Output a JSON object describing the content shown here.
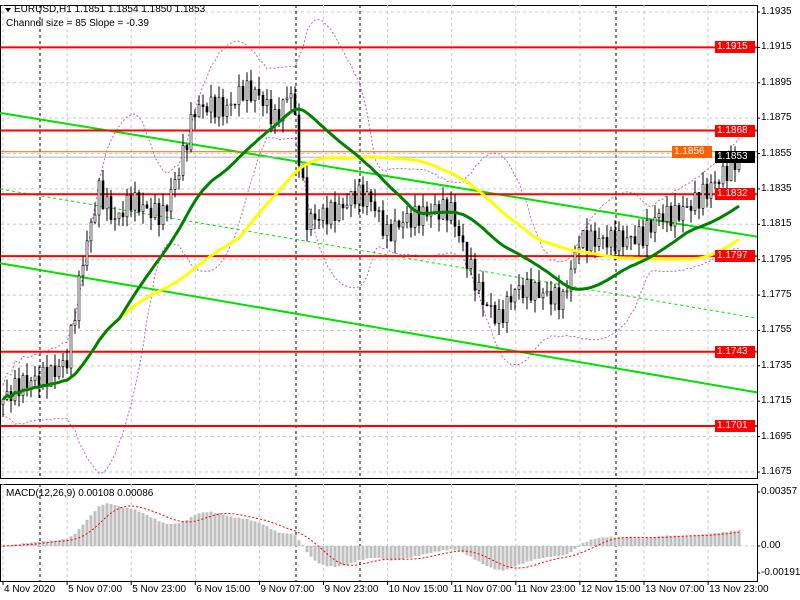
{
  "header": {
    "symbol_line": "EURUSD,H1  1.1851 1.1854 1.1850 1.1853",
    "channel_line": "Channel size = 85 Slope = -0.39",
    "macd_line": "MACD(12,26,9) 0.00108 0.00086"
  },
  "colors": {
    "level": "#ff0000",
    "orange_level": "#ff6000",
    "channel": "#00e000",
    "ma_fast": "#008000",
    "ma_slow": "#ffff00",
    "envelope": "#c060c0",
    "histogram": "#c0c0c0",
    "signal": "#ff0000",
    "current": "#000000"
  },
  "chart_data": [
    {
      "type": "candlestick",
      "title": "EURUSD,H1",
      "ylim": [
        1.1665,
        1.1942
      ],
      "price_ticks": [
        "1.1935",
        "1.1915",
        "1.1895",
        "1.1875",
        "1.1855",
        "1.1835",
        "1.1815",
        "1.1795",
        "1.1775",
        "1.1755",
        "1.1735",
        "1.1715",
        "1.1695",
        "1.1675"
      ],
      "time_labels": [
        "4 Nov 2020",
        "5 Nov 07:00",
        "5 Nov 23:00",
        "6 Nov 15:00",
        "9 Nov 07:00",
        "9 Nov 23:00",
        "10 Nov 15:00",
        "11 Nov 07:00",
        "11 Nov 23:00",
        "12 Nov 15:00",
        "13 Nov 07:00",
        "13 Nov 23:00"
      ],
      "close_keypoints": [
        1.1716,
        1.1724,
        1.1727,
        1.173,
        1.1738,
        1.1795,
        1.1834,
        1.1817,
        1.1829,
        1.1823,
        1.182,
        1.1846,
        1.188,
        1.1882,
        1.188,
        1.1891,
        1.1888,
        1.1874,
        1.1891,
        1.1817,
        1.182,
        1.1823,
        1.1832,
        1.1829,
        1.1809,
        1.1817,
        1.182,
        1.1823,
        1.1823,
        1.1795,
        1.1772,
        1.1761,
        1.1778,
        1.1778,
        1.1775,
        1.1772,
        1.1806,
        1.1806,
        1.1806,
        1.1806,
        1.1809,
        1.182,
        1.182,
        1.1826,
        1.1834,
        1.1843,
        1.1853
      ],
      "levels": [
        {
          "label": "1.1915",
          "value": 1.1915
        },
        {
          "label": "1.1868",
          "value": 1.1868
        },
        {
          "label": "1.1832",
          "value": 1.1832
        },
        {
          "label": "1.1797",
          "value": 1.1797
        },
        {
          "label": "1.1743",
          "value": 1.1743
        },
        {
          "label": "1.1701",
          "value": 1.1701
        }
      ],
      "orange_level": {
        "label": "1.1856",
        "value": 1.1856
      },
      "current_price": {
        "label": "1.1853",
        "value": 1.1853
      },
      "channel": {
        "upper": [
          1.1878,
          1.1808
        ],
        "lower": [
          1.1793,
          1.172
        ],
        "middle": [
          1.1835,
          1.1762
        ],
        "size_pips": 85,
        "slope": -0.39
      },
      "moving_averages": [
        {
          "period": 30,
          "color": "ma_fast"
        },
        {
          "period": 60,
          "color": "ma_slow"
        }
      ]
    },
    {
      "type": "bar",
      "title": "MACD(12,26,9)",
      "fast": 12,
      "slow": 26,
      "signal": 9,
      "macd_value": 0.00108,
      "signal_value": 0.00086,
      "ticks": [
        "0.00357",
        "0.00",
        "-0.00191"
      ],
      "ylim": [
        -0.00191,
        0.00357
      ]
    }
  ]
}
